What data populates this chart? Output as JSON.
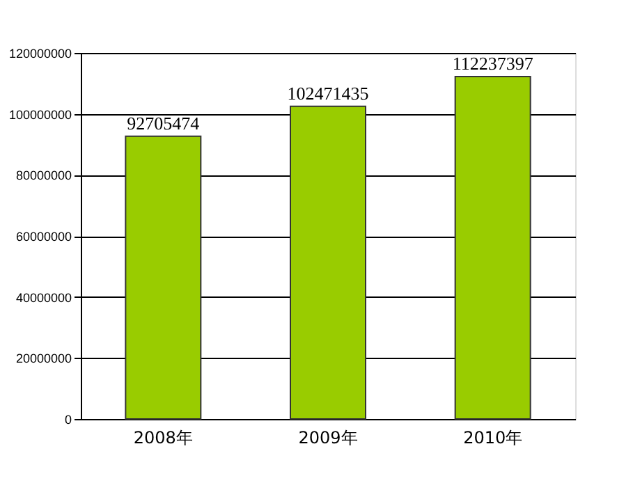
{
  "chart_data": {
    "type": "bar",
    "categories": [
      "2008年",
      "2009年",
      "2010年"
    ],
    "values": [
      92705474,
      102471435,
      112237397
    ],
    "color": "#99cc00",
    "ylim": [
      0,
      120000000
    ],
    "yticks": [
      0,
      20000000,
      40000000,
      60000000,
      80000000,
      100000000,
      120000000
    ],
    "grid": "y",
    "data_labels": true
  }
}
